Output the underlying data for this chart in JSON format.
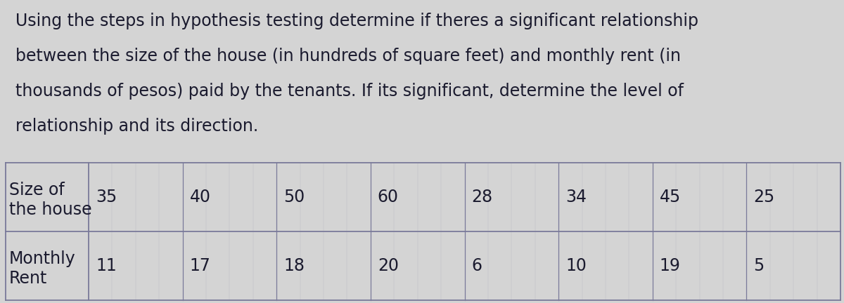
{
  "lines": [
    "Using the steps in hypothesis testing determine if theres a significant relationship",
    "between the size of the house (in hundreds of square feet) and monthly rent (in",
    "thousands of pesos) paid by the tenants. If its significant, determine the level of",
    "relationship and its direction."
  ],
  "row1_label_line1": "Size of",
  "row1_label_line2": "the house",
  "row2_label_line1": "Monthly",
  "row2_label_line2": "Rent",
  "row1_values": [
    "35",
    "40",
    "50",
    "60",
    "28",
    "34",
    "45",
    "25"
  ],
  "row2_values": [
    "11",
    "17",
    "18",
    "20",
    "6",
    "10",
    "19",
    "5"
  ],
  "bg_color": "#d4d4d4",
  "text_color": "#1a1a2e",
  "table_line_color": "#7a7a9a",
  "paragraph_fontsize": 17,
  "table_fontsize": 17,
  "fig_width": 12.0,
  "fig_height": 4.32,
  "dpi": 100
}
